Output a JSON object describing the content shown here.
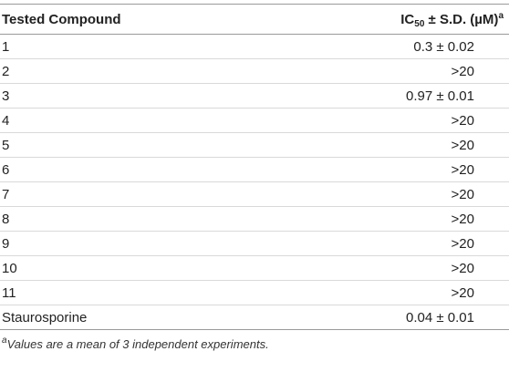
{
  "table": {
    "headers": {
      "compound": "Tested Compound",
      "ic50": {
        "prefix": "IC",
        "subscript": "50",
        "suffix": " ± S.D. (µM)",
        "superscript": "a"
      }
    },
    "rows": [
      {
        "compound": "1",
        "ic50": "0.3 ± 0.02"
      },
      {
        "compound": "2",
        "ic50": ">20"
      },
      {
        "compound": "3",
        "ic50": "0.97 ± 0.01"
      },
      {
        "compound": "4",
        "ic50": ">20"
      },
      {
        "compound": "5",
        "ic50": ">20"
      },
      {
        "compound": "6",
        "ic50": ">20"
      },
      {
        "compound": "7",
        "ic50": ">20"
      },
      {
        "compound": "8",
        "ic50": ">20"
      },
      {
        "compound": "9",
        "ic50": ">20"
      },
      {
        "compound": "10",
        "ic50": ">20"
      },
      {
        "compound": "11",
        "ic50": ">20"
      },
      {
        "compound": "Staurosporine",
        "ic50": "0.04 ± 0.01"
      }
    ]
  },
  "footnote": {
    "marker": "a",
    "text": "Values are a mean of 3 independent experiments."
  }
}
